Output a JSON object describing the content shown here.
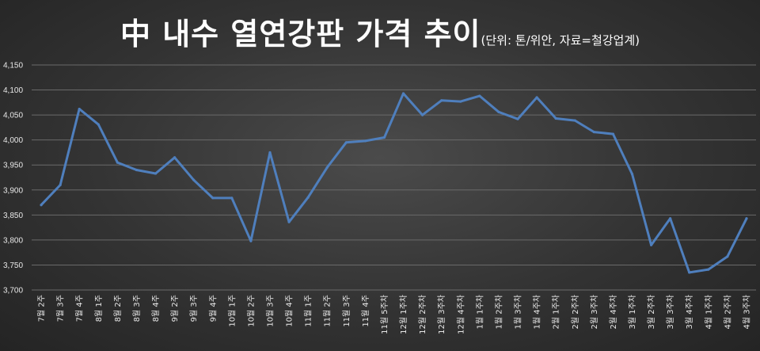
{
  "chart_data": {
    "type": "line",
    "title": "中 내수 열연강판 가격 추이",
    "subtitle": "(단위: 톤/위안, 자료=철강업계)",
    "categories": [
      "7월 2주",
      "7월 3주",
      "7월 4주",
      "8월 1주",
      "8월 2주",
      "8월 3주",
      "8월 4주",
      "9월 2주",
      "9월 3주",
      "9월 4주",
      "10월 1주",
      "10월 2주",
      "10월 3주",
      "10월 4주",
      "11월 1주",
      "11월 2주",
      "11월 3주",
      "11월 4주",
      "11월 5주차",
      "12월 1주차",
      "12월 2주차",
      "12월 3주차",
      "12월 4주차",
      "1월 1주차",
      "1월 2주차",
      "1월 3주차",
      "1월 4주차",
      "2월 1주차",
      "2월 2주차",
      "2월 3주차",
      "2월 4주차",
      "3월 1주차",
      "3월 2주차",
      "3월 3주차",
      "3월 4주차",
      "4월 1주차",
      "4월 2주차",
      "4월 3주차"
    ],
    "series": [
      {
        "values": [
          3870,
          3910,
          4062,
          4031,
          3955,
          3940,
          3933,
          3965,
          3920,
          3884,
          3884,
          3798,
          3975,
          3836,
          3885,
          3945,
          3995,
          3998,
          4005,
          4093,
          4050,
          4079,
          4077,
          4088,
          4056,
          4042,
          4085,
          4043,
          4039,
          4016,
          4012,
          3932,
          3790,
          3843,
          3735,
          3741,
          3767,
          3843
        ]
      }
    ],
    "ylim": [
      3700,
      4150
    ],
    "yticks": [
      "3,700",
      "3,750",
      "3,800",
      "3,850",
      "3,900",
      "3,950",
      "4,000",
      "4,050",
      "4,100",
      "4,150"
    ],
    "grid": true,
    "line_color": "#4f7fbd",
    "grid_color": "#6a6a6a"
  }
}
